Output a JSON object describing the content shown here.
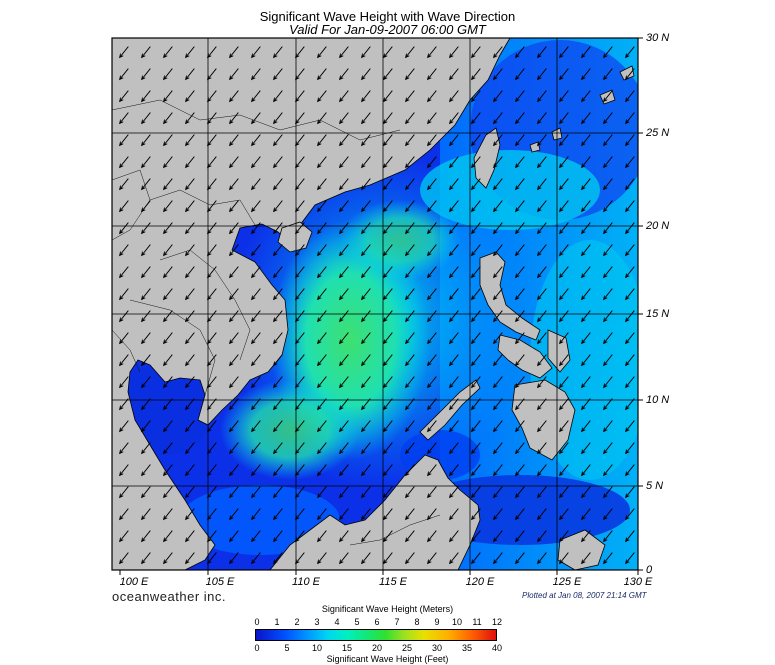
{
  "title": {
    "line1": "Significant Wave Height with Wave Direction",
    "line2": "Valid For Jan-09-2007 06:00 GMT"
  },
  "lat_labels": [
    "30 N",
    "25 N",
    "20 N",
    "15 N",
    "10 N",
    "5 N",
    "0"
  ],
  "lon_labels": [
    "100 E",
    "105 E",
    "110 E",
    "115 E",
    "120 E",
    "125 E",
    "130 E"
  ],
  "brand": "oceanweather inc.",
  "plotted": "Plotted at Jan 08, 2007 21:14 GMT",
  "colorbar": {
    "title_meters": "Significant Wave Height (Meters)",
    "title_feet": "Significant Wave Height (Feet)",
    "meter_ticks": [
      "0",
      "1",
      "2",
      "3",
      "4",
      "5",
      "6",
      "7",
      "8",
      "9",
      "10",
      "11",
      "12"
    ],
    "feet_ticks": [
      "0",
      "5",
      "10",
      "15",
      "20",
      "25",
      "30",
      "35",
      "40"
    ]
  },
  "colors": {
    "land": "#c0c0c0",
    "deep_blue": "#0a28e0",
    "mid_blue": "#0090ff",
    "cyan": "#00d8f0",
    "green": "#30e070"
  },
  "map": {
    "extent_lon": [
      100,
      130
    ],
    "extent_lat": [
      0,
      30
    ],
    "grid_interval_deg": 5,
    "arrow_direction": "southwest"
  }
}
